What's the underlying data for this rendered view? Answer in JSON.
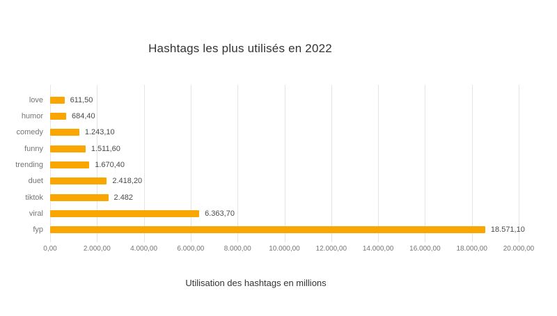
{
  "chart_data": {
    "type": "bar",
    "orientation": "horizontal",
    "title": "Hashtags les plus utilisés en 2022",
    "xlabel": "Utilisation des hashtags en millions",
    "categories": [
      "love",
      "humor",
      "comedy",
      "funny",
      "trending",
      "duet",
      "tiktok",
      "viral",
      "fyp"
    ],
    "values": [
      611.5,
      684.4,
      1243.1,
      1511.6,
      1670.4,
      2418.2,
      2482,
      6363.7,
      18571.1
    ],
    "value_labels": [
      "611,50",
      "684,40",
      "1.243,10",
      "1.511,60",
      "1.670,40",
      "2.418,20",
      "2.482",
      "6.363,70",
      "18.571,10"
    ],
    "xlim": [
      0,
      20000
    ],
    "x_ticks": [
      "0,00",
      "2.000,00",
      "4.000,00",
      "6.000,00",
      "8.000,00",
      "10.000,00",
      "12.000,00",
      "14.000,00",
      "16.000,00",
      "18.000,00",
      "20.000,00"
    ],
    "bar_color": "#F9A602",
    "grid": true,
    "legend": "none"
  }
}
